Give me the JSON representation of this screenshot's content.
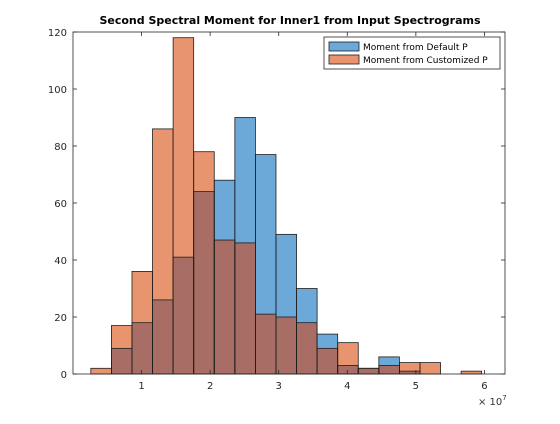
{
  "chart_data": {
    "type": "histogram",
    "title": "Second Spectral Moment for Inner1 from Input Spectrograms",
    "xlabel": "",
    "ylabel": "",
    "x_exponent_label": "× 10",
    "x_exponent_power": "7",
    "xlim": [
      0.0,
      6.3
    ],
    "ylim": [
      0,
      120
    ],
    "xticks": [
      1,
      2,
      3,
      4,
      5,
      6
    ],
    "xtick_labels": [
      "1",
      "2",
      "3",
      "4",
      "5",
      "6"
    ],
    "yticks": [
      0,
      20,
      40,
      60,
      80,
      100,
      120
    ],
    "ytick_labels": [
      "0",
      "20",
      "40",
      "60",
      "80",
      "100",
      "120"
    ],
    "grid": false,
    "legend_position": "top-right",
    "bin_edges": [
      0.26,
      0.56,
      0.86,
      1.16,
      1.46,
      1.76,
      2.06,
      2.36,
      2.66,
      2.96,
      3.26,
      3.56,
      3.86,
      4.16,
      4.46,
      4.76,
      5.06,
      5.36,
      5.66,
      5.96
    ],
    "series": [
      {
        "name": "Moment from Default P",
        "color": "#0072BD",
        "values": [
          0,
          9,
          18,
          26,
          41,
          64,
          68,
          90,
          77,
          49,
          30,
          14,
          3,
          2,
          6,
          1,
          0,
          0,
          0
        ]
      },
      {
        "name": "Moment from Customized P",
        "color": "#D95319",
        "values": [
          2,
          17,
          36,
          86,
          118,
          78,
          47,
          46,
          21,
          20,
          18,
          9,
          11,
          2,
          3,
          4,
          4,
          0,
          1
        ]
      }
    ]
  },
  "colors": {
    "default_fill": "#6CA8D8",
    "custom_fill": "#E8946E",
    "overlap_fill": "#A86E65",
    "edge": "#1e1e1e",
    "axis": "#262626"
  }
}
